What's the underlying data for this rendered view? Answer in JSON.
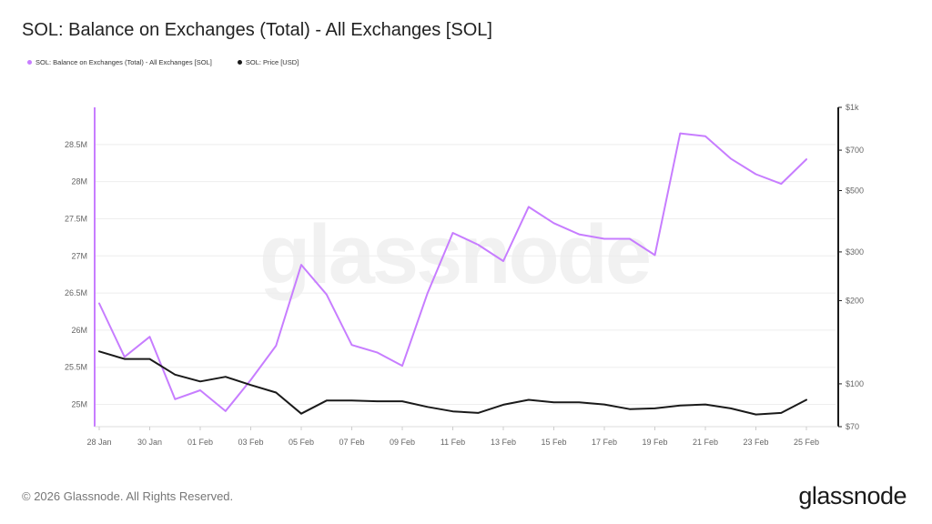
{
  "header": {
    "title": "SOL: Balance on Exchanges (Total) - All Exchanges [SOL]"
  },
  "legend": {
    "items": [
      {
        "label": "SOL: Balance on Exchanges (Total) - All Exchanges [SOL]",
        "color": "#c77dff"
      },
      {
        "label": "SOL: Price [USD]",
        "color": "#1a1a1a"
      }
    ]
  },
  "watermark": "glassnode",
  "footer": {
    "copyright": "© 2026 Glassnode. All Rights Reserved.",
    "logo": "glassnode"
  },
  "chart_data": {
    "type": "line",
    "x": [
      "28 Jan",
      "29 Jan",
      "30 Jan",
      "31 Jan",
      "01 Feb",
      "02 Feb",
      "03 Feb",
      "04 Feb",
      "05 Feb",
      "06 Feb",
      "07 Feb",
      "08 Feb",
      "09 Feb",
      "10 Feb",
      "11 Feb",
      "12 Feb",
      "13 Feb",
      "14 Feb",
      "15 Feb",
      "16 Feb",
      "17 Feb",
      "18 Feb",
      "19 Feb",
      "20 Feb",
      "21 Feb",
      "22 Feb",
      "23 Feb",
      "24 Feb",
      "25 Feb"
    ],
    "x_tick_labels": [
      "28 Jan",
      "30 Jan",
      "01 Feb",
      "03 Feb",
      "05 Feb",
      "07 Feb",
      "09 Feb",
      "11 Feb",
      "13 Feb",
      "15 Feb",
      "17 Feb",
      "19 Feb",
      "21 Feb",
      "23 Feb",
      "25 Feb"
    ],
    "y_left": {
      "ticks": [
        25000000,
        25500000,
        26000000,
        26500000,
        27000000,
        27500000,
        28000000,
        28500000
      ],
      "tick_labels": [
        "25M",
        "25.5M",
        "26M",
        "26.5M",
        "27M",
        "27.5M",
        "28M",
        "28.5M"
      ],
      "range": [
        24700000,
        29000000
      ]
    },
    "y_right": {
      "scale": "log",
      "ticks": [
        70,
        100,
        200,
        300,
        500,
        700,
        1000
      ],
      "tick_labels": [
        "$70",
        "$100",
        "$200",
        "$300",
        "$500",
        "$700",
        "$1k"
      ],
      "range": [
        70,
        1000
      ]
    },
    "grid": "horizontal",
    "series": [
      {
        "name": "SOL: Balance on Exchanges (Total) - All Exchanges [SOL]",
        "axis": "left",
        "color": "#c77dff",
        "values": [
          26360000,
          25640000,
          25910000,
          25070000,
          25190000,
          24910000,
          25330000,
          25790000,
          26880000,
          26480000,
          25800000,
          25700000,
          25520000,
          26500000,
          27310000,
          27150000,
          26930000,
          27660000,
          27440000,
          27290000,
          27230000,
          27230000,
          27010000,
          28650000,
          28610000,
          28310000,
          28100000,
          27970000,
          28300000
        ]
      },
      {
        "name": "SOL: Price [USD]",
        "axis": "right",
        "color": "#1a1a1a",
        "values": [
          131,
          123,
          123,
          108,
          102,
          106,
          99,
          93,
          78,
          87,
          87,
          86.5,
          86.5,
          82.5,
          79.5,
          78.5,
          84,
          87.5,
          85.7,
          85.7,
          84.2,
          81,
          81.5,
          83.5,
          84.2,
          81.5,
          77.5,
          78.5,
          87.5
        ]
      }
    ]
  }
}
